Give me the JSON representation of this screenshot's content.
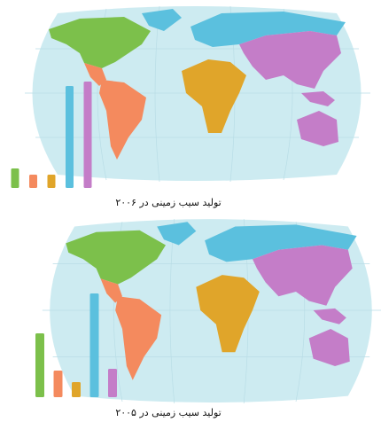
{
  "chart_data": [
    {
      "type": "bar",
      "title": "تولید سیب زمینی در ۲۰۰۶",
      "categories": [
        null,
        null,
        null,
        null,
        null
      ],
      "values": [
        22,
        15,
        15,
        115,
        120
      ],
      "colors": [
        "#7cc04b",
        "#f48a5e",
        "#e0a52a",
        "#5bc0de",
        "#c47dc8"
      ]
    },
    {
      "type": "bar",
      "title": "تولید سیب زمینی در ۲۰۰۵",
      "categories": [
        null,
        null,
        null,
        null,
        null
      ],
      "values": [
        72,
        30,
        17,
        117,
        32
      ],
      "colors": [
        "#7cc04b",
        "#f48a5e",
        "#e0a52a",
        "#5bc0de",
        "#c47dc8"
      ]
    }
  ]
}
